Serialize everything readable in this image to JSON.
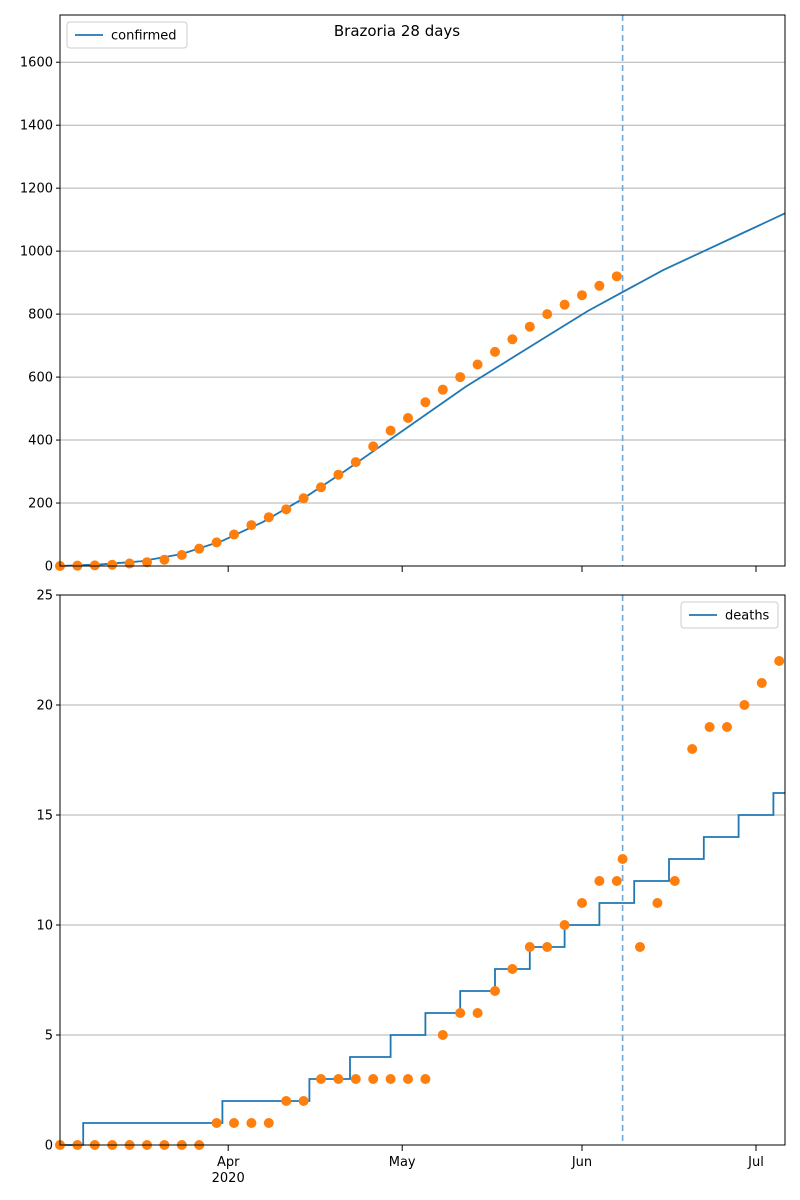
{
  "colors": {
    "model_line": "#1f77b4",
    "observed_points": "#ff7f0e",
    "band": "#1f77b4",
    "grid": "#b0b0b0",
    "forecast_marker": "#6fa8d6"
  },
  "x_axis": {
    "start": "2020-03-03",
    "end": "2020-07-06",
    "ticks": [
      {
        "date": "2020-04-01",
        "label": "Apr",
        "sublabel": "2020"
      },
      {
        "date": "2020-05-01",
        "label": "May",
        "sublabel": ""
      },
      {
        "date": "2020-06-01",
        "label": "Jun",
        "sublabel": ""
      },
      {
        "date": "2020-07-01",
        "label": "Jul",
        "sublabel": ""
      }
    ]
  },
  "chart_data": [
    {
      "type": "line",
      "title": "Brazoria 28 days",
      "legend": {
        "label": "confirmed",
        "position": "top-left"
      },
      "ylim": [
        0,
        1750
      ],
      "yticks": [
        0,
        200,
        400,
        600,
        800,
        1000,
        1200,
        1400,
        1600
      ],
      "grid": "horizontal",
      "forecast_start": "2020-06-08",
      "model_series": [
        {
          "x": "2020-03-03",
          "y": 0
        },
        {
          "x": "2020-03-10",
          "y": 5
        },
        {
          "x": "2020-03-17",
          "y": 15
        },
        {
          "x": "2020-03-24",
          "y": 38
        },
        {
          "x": "2020-03-31",
          "y": 80
        },
        {
          "x": "2020-04-07",
          "y": 140
        },
        {
          "x": "2020-04-14",
          "y": 215
        },
        {
          "x": "2020-04-21",
          "y": 300
        },
        {
          "x": "2020-04-28",
          "y": 390
        },
        {
          "x": "2020-05-05",
          "y": 480
        },
        {
          "x": "2020-05-12",
          "y": 570
        },
        {
          "x": "2020-05-19",
          "y": 650
        },
        {
          "x": "2020-05-26",
          "y": 730
        },
        {
          "x": "2020-06-02",
          "y": 810
        },
        {
          "x": "2020-06-08",
          "y": 870
        },
        {
          "x": "2020-06-15",
          "y": 940
        },
        {
          "x": "2020-06-22",
          "y": 1000
        },
        {
          "x": "2020-06-29",
          "y": 1060
        },
        {
          "x": "2020-07-06",
          "y": 1120
        }
      ],
      "observed_points": [
        {
          "x": "2020-03-03",
          "y": 0
        },
        {
          "x": "2020-03-06",
          "y": 1
        },
        {
          "x": "2020-03-09",
          "y": 2
        },
        {
          "x": "2020-03-12",
          "y": 4
        },
        {
          "x": "2020-03-15",
          "y": 8
        },
        {
          "x": "2020-03-18",
          "y": 12
        },
        {
          "x": "2020-03-21",
          "y": 20
        },
        {
          "x": "2020-03-24",
          "y": 35
        },
        {
          "x": "2020-03-27",
          "y": 55
        },
        {
          "x": "2020-03-30",
          "y": 75
        },
        {
          "x": "2020-04-02",
          "y": 100
        },
        {
          "x": "2020-04-05",
          "y": 130
        },
        {
          "x": "2020-04-08",
          "y": 155
        },
        {
          "x": "2020-04-11",
          "y": 180
        },
        {
          "x": "2020-04-14",
          "y": 215
        },
        {
          "x": "2020-04-17",
          "y": 250
        },
        {
          "x": "2020-04-20",
          "y": 290
        },
        {
          "x": "2020-04-23",
          "y": 330
        },
        {
          "x": "2020-04-26",
          "y": 380
        },
        {
          "x": "2020-04-29",
          "y": 430
        },
        {
          "x": "2020-05-02",
          "y": 470
        },
        {
          "x": "2020-05-05",
          "y": 520
        },
        {
          "x": "2020-05-08",
          "y": 560
        },
        {
          "x": "2020-05-11",
          "y": 600
        },
        {
          "x": "2020-05-14",
          "y": 640
        },
        {
          "x": "2020-05-17",
          "y": 680
        },
        {
          "x": "2020-05-20",
          "y": 720
        },
        {
          "x": "2020-05-23",
          "y": 760
        },
        {
          "x": "2020-05-26",
          "y": 800
        },
        {
          "x": "2020-05-29",
          "y": 830
        },
        {
          "x": "2020-06-01",
          "y": 860
        },
        {
          "x": "2020-06-04",
          "y": 890
        },
        {
          "x": "2020-06-07",
          "y": 920
        }
      ],
      "bands_lower": [],
      "bands_upper": []
    },
    {
      "type": "line",
      "title": "",
      "legend": {
        "label": "deaths",
        "position": "top-right"
      },
      "ylim": [
        0,
        25
      ],
      "yticks": [
        0,
        5,
        10,
        15,
        20,
        25
      ],
      "grid": "horizontal",
      "forecast_start": "2020-06-08",
      "model_series": [
        {
          "x": "2020-03-03",
          "y": 0
        },
        {
          "x": "2020-03-07",
          "y": 0
        },
        {
          "x": "2020-03-07",
          "y": 1
        },
        {
          "x": "2020-03-31",
          "y": 1
        },
        {
          "x": "2020-03-31",
          "y": 2
        },
        {
          "x": "2020-04-15",
          "y": 2
        },
        {
          "x": "2020-04-15",
          "y": 3
        },
        {
          "x": "2020-04-22",
          "y": 3
        },
        {
          "x": "2020-04-22",
          "y": 4
        },
        {
          "x": "2020-04-29",
          "y": 4
        },
        {
          "x": "2020-04-29",
          "y": 5
        },
        {
          "x": "2020-05-05",
          "y": 5
        },
        {
          "x": "2020-05-05",
          "y": 6
        },
        {
          "x": "2020-05-11",
          "y": 6
        },
        {
          "x": "2020-05-11",
          "y": 7
        },
        {
          "x": "2020-05-17",
          "y": 7
        },
        {
          "x": "2020-05-17",
          "y": 8
        },
        {
          "x": "2020-05-23",
          "y": 8
        },
        {
          "x": "2020-05-23",
          "y": 9
        },
        {
          "x": "2020-05-29",
          "y": 9
        },
        {
          "x": "2020-05-29",
          "y": 10
        },
        {
          "x": "2020-06-04",
          "y": 10
        },
        {
          "x": "2020-06-04",
          "y": 11
        },
        {
          "x": "2020-06-10",
          "y": 11
        },
        {
          "x": "2020-06-10",
          "y": 12
        },
        {
          "x": "2020-06-16",
          "y": 12
        },
        {
          "x": "2020-06-16",
          "y": 13
        },
        {
          "x": "2020-06-22",
          "y": 13
        },
        {
          "x": "2020-06-22",
          "y": 14
        },
        {
          "x": "2020-06-28",
          "y": 14
        },
        {
          "x": "2020-06-28",
          "y": 15
        },
        {
          "x": "2020-07-04",
          "y": 15
        },
        {
          "x": "2020-07-04",
          "y": 16
        },
        {
          "x": "2020-07-06",
          "y": 16
        }
      ],
      "observed_points": [
        {
          "x": "2020-03-03",
          "y": 0
        },
        {
          "x": "2020-03-06",
          "y": 0
        },
        {
          "x": "2020-03-09",
          "y": 0
        },
        {
          "x": "2020-03-12",
          "y": 0
        },
        {
          "x": "2020-03-15",
          "y": 0
        },
        {
          "x": "2020-03-18",
          "y": 0
        },
        {
          "x": "2020-03-21",
          "y": 0
        },
        {
          "x": "2020-03-24",
          "y": 0
        },
        {
          "x": "2020-03-27",
          "y": 0
        },
        {
          "x": "2020-03-30",
          "y": 1
        },
        {
          "x": "2020-04-02",
          "y": 1
        },
        {
          "x": "2020-04-05",
          "y": 1
        },
        {
          "x": "2020-04-08",
          "y": 1
        },
        {
          "x": "2020-04-11",
          "y": 2
        },
        {
          "x": "2020-04-14",
          "y": 2
        },
        {
          "x": "2020-04-17",
          "y": 3
        },
        {
          "x": "2020-04-20",
          "y": 3
        },
        {
          "x": "2020-04-23",
          "y": 3
        },
        {
          "x": "2020-04-26",
          "y": 3
        },
        {
          "x": "2020-04-29",
          "y": 3
        },
        {
          "x": "2020-05-02",
          "y": 3
        },
        {
          "x": "2020-05-05",
          "y": 3
        },
        {
          "x": "2020-05-08",
          "y": 5
        },
        {
          "x": "2020-05-11",
          "y": 6
        },
        {
          "x": "2020-05-14",
          "y": 6
        },
        {
          "x": "2020-05-17",
          "y": 7
        },
        {
          "x": "2020-05-20",
          "y": 8
        },
        {
          "x": "2020-05-23",
          "y": 9
        },
        {
          "x": "2020-05-26",
          "y": 9
        },
        {
          "x": "2020-05-29",
          "y": 10
        },
        {
          "x": "2020-06-01",
          "y": 11
        },
        {
          "x": "2020-06-04",
          "y": 12
        },
        {
          "x": "2020-06-07",
          "y": 12
        },
        {
          "x": "2020-06-08",
          "y": 13
        },
        {
          "x": "2020-06-11",
          "y": 9
        },
        {
          "x": "2020-06-14",
          "y": 11
        },
        {
          "x": "2020-06-17",
          "y": 12
        },
        {
          "x": "2020-06-20",
          "y": 18
        },
        {
          "x": "2020-06-23",
          "y": 19
        },
        {
          "x": "2020-06-26",
          "y": 19
        },
        {
          "x": "2020-06-29",
          "y": 20
        },
        {
          "x": "2020-07-02",
          "y": 21
        },
        {
          "x": "2020-07-05",
          "y": 22
        }
      ],
      "bands_lower": [],
      "bands_upper": []
    }
  ]
}
